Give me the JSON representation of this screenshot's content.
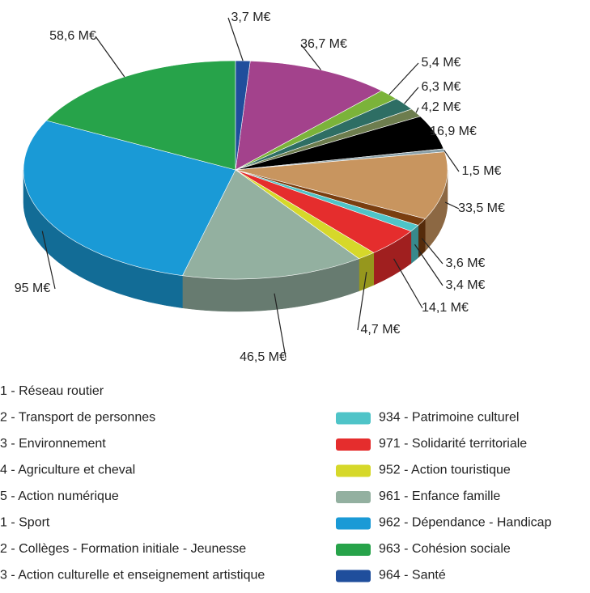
{
  "chart_data": {
    "type": "pie3d",
    "categories": [
      "1 - Réseau routier",
      "2 - Transport de personnes",
      "3 - Environnement",
      "4 - Agriculture et cheval",
      "5 - Action numérique",
      "1 - Sport",
      "2 - Collèges - Formation initiale - Jeunesse",
      "3 - Action culturelle et enseignement artistique",
      "934 - Patrimoine culturel",
      "971 - Solidarité territoriale",
      "952 - Action touristique",
      "961 - Enfance famille",
      "962 - Dépendance - Handicap",
      "963 - Cohésion sociale",
      "964 - Santé"
    ],
    "values": [
      36.7,
      5.4,
      6.3,
      4.2,
      16.9,
      1.5,
      33.5,
      3.6,
      3.4,
      14.1,
      4.7,
      46.5,
      95,
      58.6,
      3.7
    ],
    "value_labels": [
      "36,7 M€",
      "5,4 M€",
      "6,3 M€",
      "4,2 M€",
      "16,9 M€",
      "1,5 M€",
      "33,5 M€",
      "3,6 M€",
      "3,4 M€",
      "14,1 M€",
      "4,7 M€",
      "46,5 M€",
      "95 M€",
      "58,6 M€",
      "3,7 M€"
    ],
    "colors": [
      "#a3428c",
      "#7bb33a",
      "#2e6e64",
      "#6d7d4e",
      "#000000",
      "#8aa0a8",
      "#c8955f",
      "#7a3e10",
      "#4fc4c8",
      "#e52d2d",
      "#d6d82a",
      "#93b0a0",
      "#1a9ad6",
      "#27a34a",
      "#1f4e9c"
    ]
  }
}
